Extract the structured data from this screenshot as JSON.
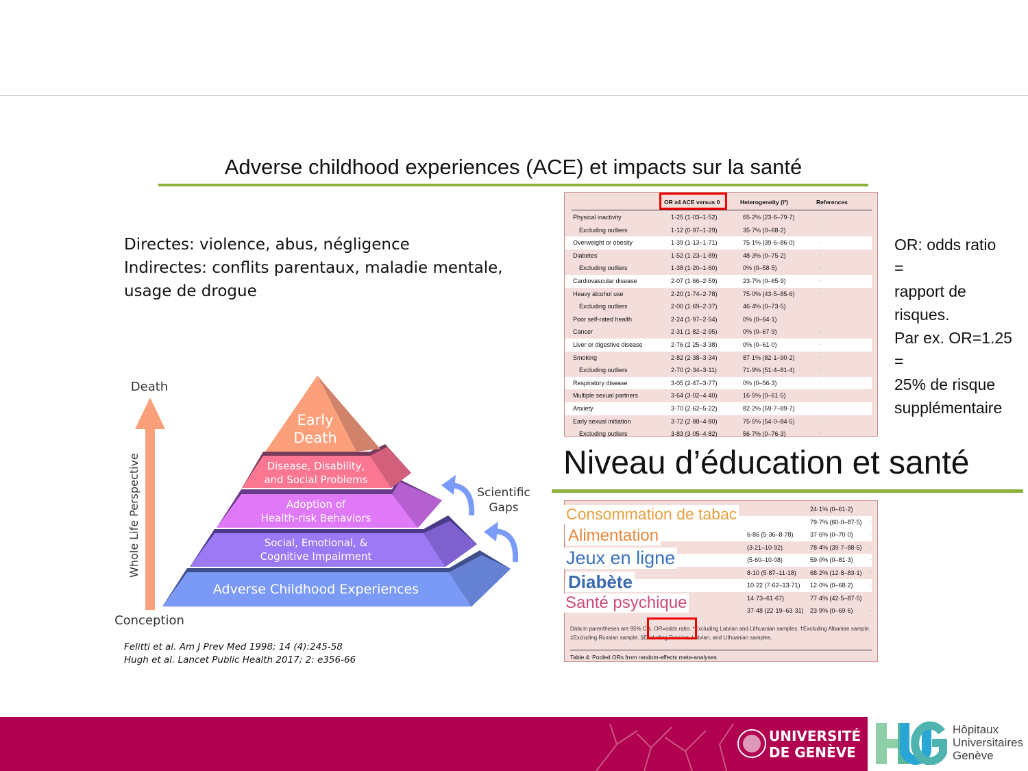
{
  "title": "Adverse childhood experiences (ACE) et impacts sur la santé",
  "bullets": [
    "Directes: violence, abus, négligence",
    "Indirectes: conflits parentaux, maladie mentale,",
    "usage de drogue"
  ],
  "or_note": "OR: odds ratio\n=\nrapport de\nrisques.\nPar ex. OR=1.25\n=\n25% de risque\nsupplémentaire",
  "table": {
    "headers": [
      "OR  ≥4 ACE versus 0",
      "Heterogeneity (I²)",
      "References"
    ],
    "rows": [
      {
        "label": "Physical inactivity",
        "or": "1·25 (1·03–1·52)",
        "het": "65·2% (23·6–79·7)"
      },
      {
        "label": "Excluding outliers",
        "or": "1·12 (0·97–1·29)",
        "het": "35·7% (0–68·2)",
        "indent": true
      },
      {
        "label": "Overweight or obesity",
        "or": "1·39 (1·13–1·71)",
        "het": "75·1% (39·6–86·0)"
      },
      {
        "label": "Diabetes",
        "or": "1·52 (1·23–1·89)",
        "het": "48·3% (0–75·2)"
      },
      {
        "label": "Excluding outliers",
        "or": "1·38 (1·20–1·60)",
        "het": "0% (0–58·5)",
        "indent": true
      },
      {
        "label": "Cardiovascular disease",
        "or": "2·07 (1·66–2·59)",
        "het": "23·7% (0–65·9)"
      },
      {
        "label": "Heavy alcohol use",
        "or": "2·20 (1·74–2·78)",
        "het": "75·0% (43·5–85·6)"
      },
      {
        "label": "Excluding outliers",
        "or": "2·00 (1·69–2·37)",
        "het": "46·4% (0–73·5)",
        "indent": true
      },
      {
        "label": "Poor self-rated health",
        "or": "2·24 (1·97–2·54)",
        "het": "0% (0–64·1)"
      },
      {
        "label": "Cancer",
        "or": "2·31 (1·82–2·95)",
        "het": "0% (0–67·9)"
      },
      {
        "label": "Liver or digestive disease",
        "or": "2·76 (2·25–3·38)",
        "het": "0% (0–61·0)"
      },
      {
        "label": "Smoking",
        "or": "2·82 (2·38–3·34)",
        "het": "87·1% (82·1–90·2)"
      },
      {
        "label": "Excluding outliers",
        "or": "2·70 (2·34–3·11)",
        "het": "71·9% (51·4–81·4)",
        "indent": true
      },
      {
        "label": "Respiratory disease",
        "or": "3·05 (2·47–3·77)",
        "het": "0% (0–56·3)"
      },
      {
        "label": "Multiple sexual partners",
        "or": "3·64 (3·02–4·40)",
        "het": "16·5% (0–61·5)"
      },
      {
        "label": "Anxiety",
        "or": "3·70 (2·62–5·22)",
        "het": "82·2% (59·7–89·7)"
      },
      {
        "label": "Early sexual initiation",
        "or": "3·72 (2·88–4·80)",
        "het": "75·5% (54·0–84·5)"
      },
      {
        "label": "Excluding outliers",
        "or": "3·83 (3·05–4·82)",
        "het": "56·7% (0–76·3)",
        "indent": true
      }
    ],
    "refs_placeholder": "···"
  },
  "niveau_title": "Niveau d’éducation et santé",
  "table2": {
    "rows": [
      {
        "or": "",
        "het": "24·1% (0–61·2)"
      },
      {
        "or": "",
        "het": "79·7% (60·0–87·5)"
      },
      {
        "or": "6·86 (5·36–8·78)",
        "het": "37·6% (0–70·0)"
      },
      {
        "or": "(3·21–10·92)",
        "het": "78·4% (39·7–88·5)"
      },
      {
        "or": "(5·60–10·08)",
        "het": "59·0% (0–81·3)"
      },
      {
        "or": "8·10 (5·87–11·18)",
        "het": "68·2% (12·8–83·1)"
      },
      {
        "or": "10·22 (7·62–13·71)",
        "het": "12·0% (0–68·2)"
      },
      {
        "or": "14·73–61·67)",
        "het": "77·4% (42·5–87·5)"
      },
      {
        "or": "37·48 (22·19–63·31)",
        "het": "23·9% (0–69·6)"
      }
    ],
    "overlays": [
      {
        "text": "Consommation de tabac",
        "color": "#e8a040"
      },
      {
        "text": "Alimentation",
        "color": "#e8883a"
      },
      {
        "text": "Jeux en ligne",
        "color": "#3a72b8"
      },
      {
        "text": "Diabète",
        "color": "#3a6ab0"
      },
      {
        "text": "Santé psychique",
        "color": "#cc4a7a"
      }
    ],
    "footnote": "Data in parentheses are 95% CIs. OR=odds ratio. *Excluding Latvian and Lithuanian samples. †Excluding Albanian sample. ‡Excluding Russian sample. §Excluding Russian, Latvian, and Lithuanian samples.",
    "caption": "Table 4: Pooled ORs from random-effects meta-analyses"
  },
  "pyramid": {
    "axis_top": "Death",
    "axis_bottom": "Conception",
    "axis_label": "Whole Life Perspective",
    "levels": [
      "Early Death",
      "Disease, Disability, and Social Problems",
      "Adoption of Health-risk Behaviors",
      "Social, Emotional, & Cognitive Impairment",
      "Adverse Childhood Experiences"
    ],
    "gaps_label_1": "Scientific",
    "gaps_label_2": "Gaps"
  },
  "citations": [
    "Felitti et al. Am J Prev Med 1998; 14 (4):245-58",
    "Hugh et al. Lancet Public Health 2017; 2: e356-66"
  ],
  "footer": {
    "unige_1": "UNIVERSITÉ",
    "unige_2": "DE GENÈVE",
    "hug_logo": "HUG",
    "hug_1": "Hôpitaux",
    "hug_2": "Universitaires",
    "hug_3": "Genève"
  },
  "colors": {
    "accent_rule": "#8db33a",
    "footer_bg": "#b0004f",
    "highlight": "#e00000"
  }
}
